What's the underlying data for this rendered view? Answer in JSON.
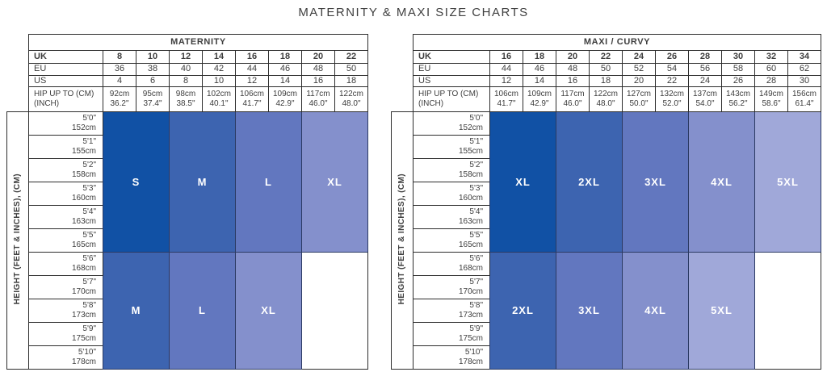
{
  "title": "MATERNITY & MAXI SIZE CHARTS",
  "palette": {
    "shade1": "#1151a5",
    "shade2": "#3d64b0",
    "shade3": "#6277bf",
    "shade4": "#8490cc",
    "shade5": "#a0a8d9",
    "empty": "#ffffff",
    "border": "#2d2d2d",
    "text": "#3e3e3e"
  },
  "side_label": "HEIGHT (FEET & INCHES), (CM)",
  "row_labels": {
    "uk": "UK",
    "eu": "EU",
    "us": "US",
    "hip1": "HIP UP TO (CM)",
    "hip2": "(INCH)"
  },
  "heights": [
    {
      "ft": "5'0\"",
      "cm": "152cm"
    },
    {
      "ft": "5'1\"",
      "cm": "155cm"
    },
    {
      "ft": "5'2\"",
      "cm": "158cm"
    },
    {
      "ft": "5'3\"",
      "cm": "160cm"
    },
    {
      "ft": "5'4\"",
      "cm": "163cm"
    },
    {
      "ft": "5'5\"",
      "cm": "165cm"
    },
    {
      "ft": "5'6\"",
      "cm": "168cm"
    },
    {
      "ft": "5'7\"",
      "cm": "170cm"
    },
    {
      "ft": "5'8\"",
      "cm": "173cm"
    },
    {
      "ft": "5'9\"",
      "cm": "175cm"
    },
    {
      "ft": "5'10\"",
      "cm": "178cm"
    }
  ],
  "bands": {
    "top_rows": 6,
    "bottom_rows": 5
  },
  "charts": [
    {
      "key": "maternity",
      "header": "MATERNITY",
      "uk": [
        "8",
        "10",
        "12",
        "14",
        "16",
        "18",
        "20",
        "22"
      ],
      "eu": [
        "36",
        "38",
        "40",
        "42",
        "44",
        "46",
        "48",
        "50"
      ],
      "us": [
        "4",
        "6",
        "8",
        "10",
        "12",
        "14",
        "16",
        "18"
      ],
      "hip_cm": [
        "92cm",
        "95cm",
        "98cm",
        "102cm",
        "106cm",
        "109cm",
        "117cm",
        "122cm"
      ],
      "hip_in": [
        "36.2\"",
        "37.4\"",
        "38.5\"",
        "40.1\"",
        "41.7\"",
        "42.9\"",
        "46.0\"",
        "48.0\""
      ],
      "top_blocks": [
        {
          "label": "S",
          "shade": "shade1"
        },
        {
          "label": "M",
          "shade": "shade2"
        },
        {
          "label": "L",
          "shade": "shade3"
        },
        {
          "label": "XL",
          "shade": "shade4"
        }
      ],
      "bottom_blocks": [
        {
          "label": "M",
          "shade": "shade2"
        },
        {
          "label": "L",
          "shade": "shade3"
        },
        {
          "label": "XL",
          "shade": "shade4"
        },
        {
          "label": "",
          "shade": "empty"
        }
      ]
    },
    {
      "key": "maxi-curvy",
      "header": "MAXI / CURVY",
      "uk": [
        "16",
        "18",
        "20",
        "22",
        "24",
        "26",
        "28",
        "30",
        "32",
        "34"
      ],
      "eu": [
        "44",
        "46",
        "48",
        "50",
        "52",
        "54",
        "56",
        "58",
        "60",
        "62"
      ],
      "us": [
        "12",
        "14",
        "16",
        "18",
        "20",
        "22",
        "24",
        "26",
        "28",
        "30"
      ],
      "hip_cm": [
        "106cm",
        "109cm",
        "117cm",
        "122cm",
        "127cm",
        "132cm",
        "137cm",
        "143cm",
        "149cm",
        "156cm"
      ],
      "hip_in": [
        "41.7\"",
        "42.9\"",
        "46.0\"",
        "48.0\"",
        "50.0\"",
        "52.0\"",
        "54.0\"",
        "56.2\"",
        "58.6\"",
        "61.4\""
      ],
      "top_blocks": [
        {
          "label": "XL",
          "shade": "shade1"
        },
        {
          "label": "2XL",
          "shade": "shade2"
        },
        {
          "label": "3XL",
          "shade": "shade3"
        },
        {
          "label": "4XL",
          "shade": "shade4"
        },
        {
          "label": "5XL",
          "shade": "shade5"
        }
      ],
      "bottom_blocks": [
        {
          "label": "2XL",
          "shade": "shade2"
        },
        {
          "label": "3XL",
          "shade": "shade3"
        },
        {
          "label": "4XL",
          "shade": "shade4"
        },
        {
          "label": "5XL",
          "shade": "shade5"
        },
        {
          "label": "",
          "shade": "empty"
        }
      ]
    }
  ]
}
